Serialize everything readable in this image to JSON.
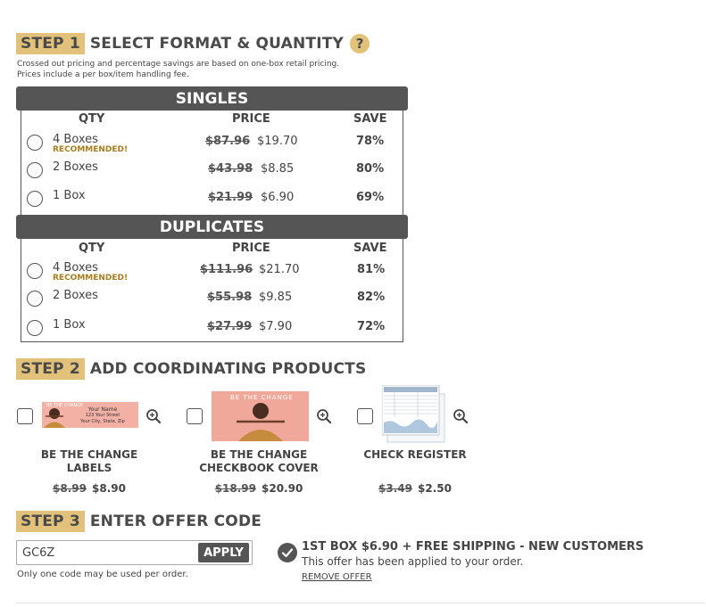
{
  "step1": {
    "badge": "STEP 1",
    "title": "SELECT FORMAT & QUANTITY",
    "help": "?",
    "note_line1": "Crossed out pricing and percentage savings are based on one-box retail pricing.",
    "note_line2": "Prices include a per box/item handling fee."
  },
  "columns": {
    "qty": "QTY",
    "price": "PRICE",
    "save": "SAVE"
  },
  "singles": {
    "title": "SINGLES",
    "rows": [
      {
        "qty": "4 Boxes",
        "badge": "RECOMMENDED!",
        "old": "$87.96",
        "new": "$19.70",
        "save": "78%"
      },
      {
        "qty": "2 Boxes",
        "badge": "",
        "old": "$43.98",
        "new": "$8.85",
        "save": "80%"
      },
      {
        "qty": "1 Box",
        "badge": "",
        "old": "$21.99",
        "new": "$6.90",
        "save": "69%"
      }
    ]
  },
  "duplicates": {
    "title": "DUPLICATES",
    "rows": [
      {
        "qty": "4 Boxes",
        "badge": "RECOMMENDED!",
        "old": "$111.96",
        "new": "$21.70",
        "save": "81%"
      },
      {
        "qty": "2 Boxes",
        "badge": "",
        "old": "$55.98",
        "new": "$9.85",
        "save": "82%"
      },
      {
        "qty": "1 Box",
        "badge": "",
        "old": "$27.99",
        "new": "$7.90",
        "save": "72%"
      }
    ]
  },
  "step2": {
    "badge": "STEP 2",
    "title": "ADD COORDINATING PRODUCTS",
    "products": [
      {
        "name_line1": "BE THE CHANGE",
        "name_line2": "LABELS",
        "old": "$8.99",
        "new": "$8.90",
        "thumb_text1": "BE THE CHANGE",
        "thumb_text2": "Your Name",
        "thumb_text3": "123 Your Street",
        "thumb_text4": "Your City, State, Zip"
      },
      {
        "name_line1": "BE THE CHANGE",
        "name_line2": "CHECKBOOK COVER",
        "old": "$18.99",
        "new": "$20.90",
        "thumb_text1": "BE THE CHANGE"
      },
      {
        "name_line1": "CHECK REGISTER",
        "name_line2": "",
        "old": "$3.49",
        "new": "$2.50"
      }
    ]
  },
  "step3": {
    "badge": "STEP 3",
    "title": "ENTER OFFER CODE",
    "code_value": "GC6Z",
    "apply_label": "APPLY",
    "help_text": "Only one code may be used per order.",
    "offer_title": "1ST BOX $6.90 + FREE SHIPPING - NEW CUSTOMERS",
    "offer_sub": "This offer has been applied to your order.",
    "remove_label": "REMOVE OFFER"
  },
  "colors": {
    "gold": "#e2c27a",
    "dark": "#555555",
    "recommended": "#a57e1e",
    "salmon": "#f0a89a"
  }
}
